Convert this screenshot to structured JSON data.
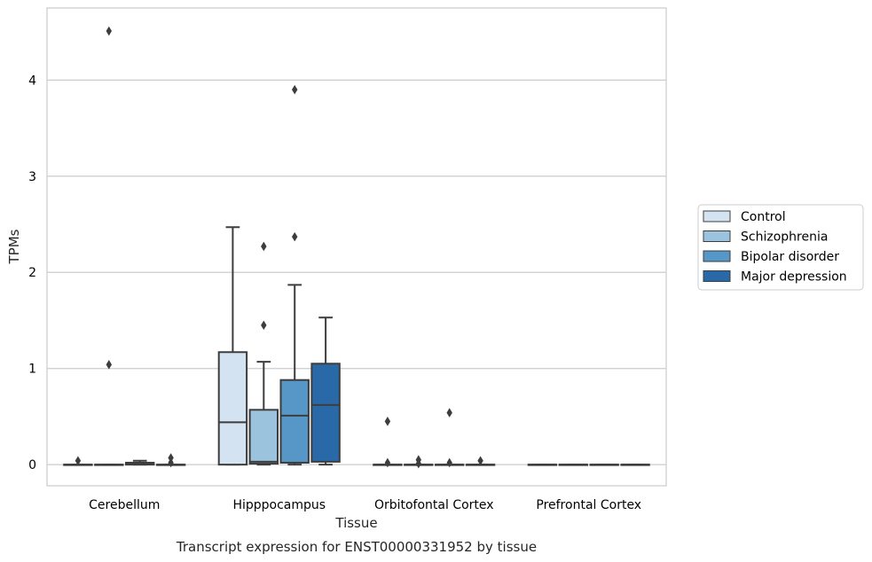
{
  "chart_data": {
    "type": "box",
    "xlabel": "Tissue",
    "ylabel": "TPMs",
    "caption": "Transcript expression for ENST00000331952 by tissue",
    "ylim": [
      -0.22,
      4.75
    ],
    "yticks": [
      0,
      1,
      2,
      3,
      4
    ],
    "grid": "horizontal",
    "legend_position": "right",
    "categories": [
      "Cerebellum",
      "Hipppocampus",
      "Orbitofontal Cortex",
      "Prefrontal Cortex"
    ],
    "series": [
      {
        "name": "Control",
        "color": "#d4e3f1",
        "boxes": [
          {
            "q1": 0,
            "median": 0,
            "q3": 0,
            "whislo": 0,
            "whishi": 0,
            "fliers": [
              0.04
            ]
          },
          {
            "q1": 0,
            "median": 0.44,
            "q3": 1.17,
            "whislo": 0,
            "whishi": 2.47,
            "fliers": []
          },
          {
            "q1": 0,
            "median": 0,
            "q3": 0,
            "whislo": 0,
            "whishi": 0,
            "fliers": [
              0.45,
              0.02
            ]
          },
          {
            "q1": 0,
            "median": 0,
            "q3": 0,
            "whislo": 0,
            "whishi": 0,
            "fliers": []
          }
        ]
      },
      {
        "name": "Schizophrenia",
        "color": "#9cc3dd",
        "boxes": [
          {
            "q1": 0,
            "median": 0,
            "q3": 0,
            "whislo": 0,
            "whishi": 0,
            "fliers": [
              4.51,
              1.04
            ]
          },
          {
            "q1": 0.01,
            "median": 0.03,
            "q3": 0.57,
            "whislo": 0,
            "whishi": 1.07,
            "fliers": [
              2.27,
              1.45
            ]
          },
          {
            "q1": 0,
            "median": 0,
            "q3": 0,
            "whislo": 0,
            "whishi": 0,
            "fliers": [
              0.05,
              0.01
            ]
          },
          {
            "q1": 0,
            "median": 0,
            "q3": 0,
            "whislo": 0,
            "whishi": 0,
            "fliers": []
          }
        ]
      },
      {
        "name": "Bipolar disorder",
        "color": "#5697c7",
        "boxes": [
          {
            "q1": 0,
            "median": 0.01,
            "q3": 0.02,
            "whislo": 0,
            "whishi": 0.04,
            "fliers": []
          },
          {
            "q1": 0.02,
            "median": 0.51,
            "q3": 0.88,
            "whislo": 0,
            "whishi": 1.87,
            "fliers": [
              3.9,
              2.37
            ]
          },
          {
            "q1": 0,
            "median": 0,
            "q3": 0,
            "whislo": 0,
            "whishi": 0,
            "fliers": [
              0.54,
              0.02
            ]
          },
          {
            "q1": 0,
            "median": 0,
            "q3": 0,
            "whislo": 0,
            "whishi": 0,
            "fliers": []
          }
        ]
      },
      {
        "name": "Major depression",
        "color": "#2a69a7",
        "boxes": [
          {
            "q1": 0,
            "median": 0,
            "q3": 0,
            "whislo": 0,
            "whishi": 0,
            "fliers": [
              0.07,
              0.02
            ]
          },
          {
            "q1": 0.03,
            "median": 0.62,
            "q3": 1.05,
            "whislo": 0,
            "whishi": 1.53,
            "fliers": []
          },
          {
            "q1": 0,
            "median": 0,
            "q3": 0,
            "whislo": 0,
            "whishi": 0,
            "fliers": [
              0.04
            ]
          },
          {
            "q1": 0,
            "median": 0,
            "q3": 0,
            "whislo": 0,
            "whishi": 0,
            "fliers": []
          }
        ]
      }
    ]
  }
}
